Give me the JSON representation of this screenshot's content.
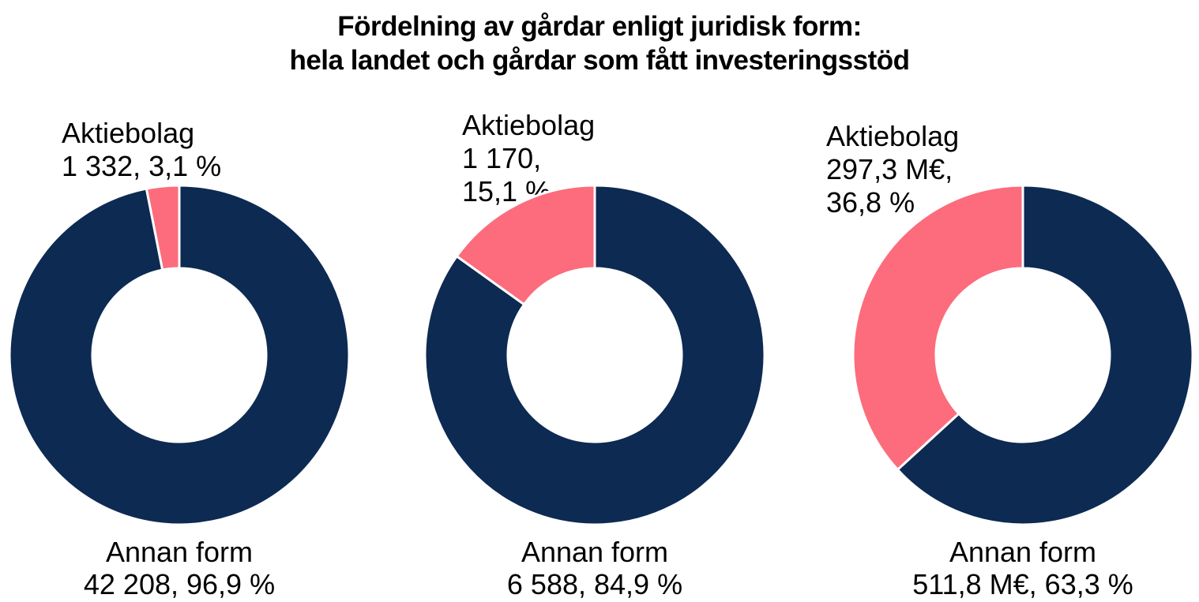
{
  "title": {
    "line1": "Fördelning av gårdar enligt juridisk form:",
    "line2": "hela landet och gårdar som fått investeringsstöd"
  },
  "colors": {
    "aktiebolag_pink": "#FC6C7C",
    "annan_form_navy": "#0D2A52",
    "slice_separator": "#FFFFFF",
    "text": "#000000"
  },
  "chart_data": [
    {
      "type": "pie",
      "donut": true,
      "slices": [
        {
          "name": "Aktiebolag",
          "value": 1332,
          "percent": 3.1
        },
        {
          "name": "Annan form",
          "value": 42208,
          "percent": 96.9
        }
      ],
      "labels": {
        "aktiebolag_lines": [
          "Aktiebolag",
          "1 332, 3,1 %"
        ],
        "annan_lines": [
          "Annan form",
          "42 208, 96,9 %"
        ]
      }
    },
    {
      "type": "pie",
      "donut": true,
      "slices": [
        {
          "name": "Aktiebolag",
          "value": 1170,
          "percent": 15.1
        },
        {
          "name": "Annan form",
          "value": 6588,
          "percent": 84.9
        }
      ],
      "labels": {
        "aktiebolag_lines": [
          "Aktiebolag",
          "1 170,",
          "15,1 %"
        ],
        "annan_lines": [
          "Annan form",
          "6 588, 84,9 %"
        ]
      }
    },
    {
      "type": "pie",
      "donut": true,
      "slices": [
        {
          "name": "Aktiebolag",
          "value": 297.3,
          "unit": "M€",
          "percent": 36.8
        },
        {
          "name": "Annan form",
          "value": 511.8,
          "unit": "M€",
          "percent": 63.3
        }
      ],
      "labels": {
        "aktiebolag_lines": [
          "Aktiebolag",
          "297,3 M€,",
          "36,8 %"
        ],
        "annan_lines": [
          "Annan form",
          "511,8 M€, 63,3 %"
        ]
      }
    }
  ],
  "layout_note": "3 donut charts: whole country count, supported farms count, support amounts"
}
